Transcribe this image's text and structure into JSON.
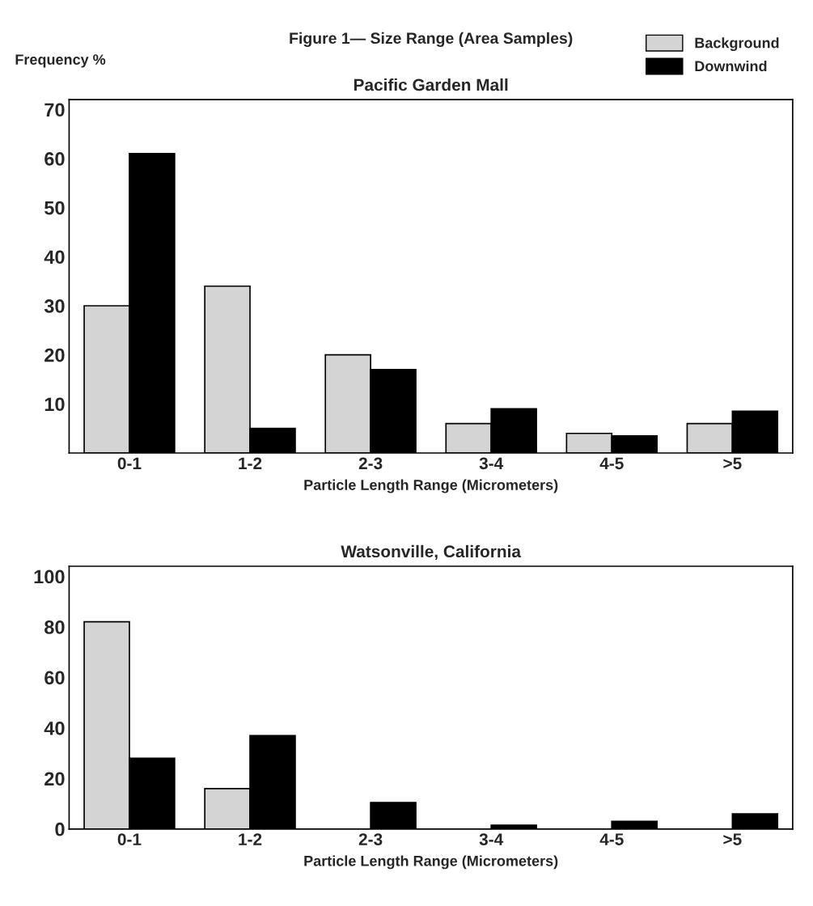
{
  "chart_data": [
    {
      "type": "bar",
      "title": "Pacific Garden Mall",
      "ylabel": "Frequency %",
      "xlabel": "Particle Length Range (Micrometers)",
      "annotations": [
        "Figure 1— Size Range (Area Samples)"
      ],
      "categories": [
        "0-1",
        "1-2",
        "2-3",
        "3-4",
        "4-5",
        ">5"
      ],
      "series": [
        {
          "name": "Background",
          "color": "#d4d4d4",
          "values": [
            30,
            34,
            20,
            6,
            4,
            6
          ]
        },
        {
          "name": "Downwind",
          "color": "#000000",
          "values": [
            61,
            5,
            17,
            9,
            3.5,
            8.5
          ]
        }
      ],
      "ylim": [
        0,
        72
      ],
      "yticks": [
        10,
        20,
        30,
        40,
        50,
        60,
        70
      ],
      "grid": false,
      "legend": "top right"
    },
    {
      "type": "bar",
      "title": "Watsonville, California",
      "xlabel": "Particle Length Range (Micrometers)",
      "categories": [
        "0-1",
        "1-2",
        "2-3",
        "3-4",
        "4-5",
        ">5"
      ],
      "series": [
        {
          "color": "#d4d4d4",
          "values": [
            82,
            16,
            null,
            null,
            null,
            null
          ]
        },
        {
          "color": "#000000",
          "values": [
            28,
            37,
            10.5,
            1.5,
            3,
            6
          ]
        }
      ],
      "ylim": [
        0,
        104
      ],
      "yticks": [
        0,
        20,
        40,
        60,
        80,
        100
      ],
      "grid": false
    }
  ]
}
